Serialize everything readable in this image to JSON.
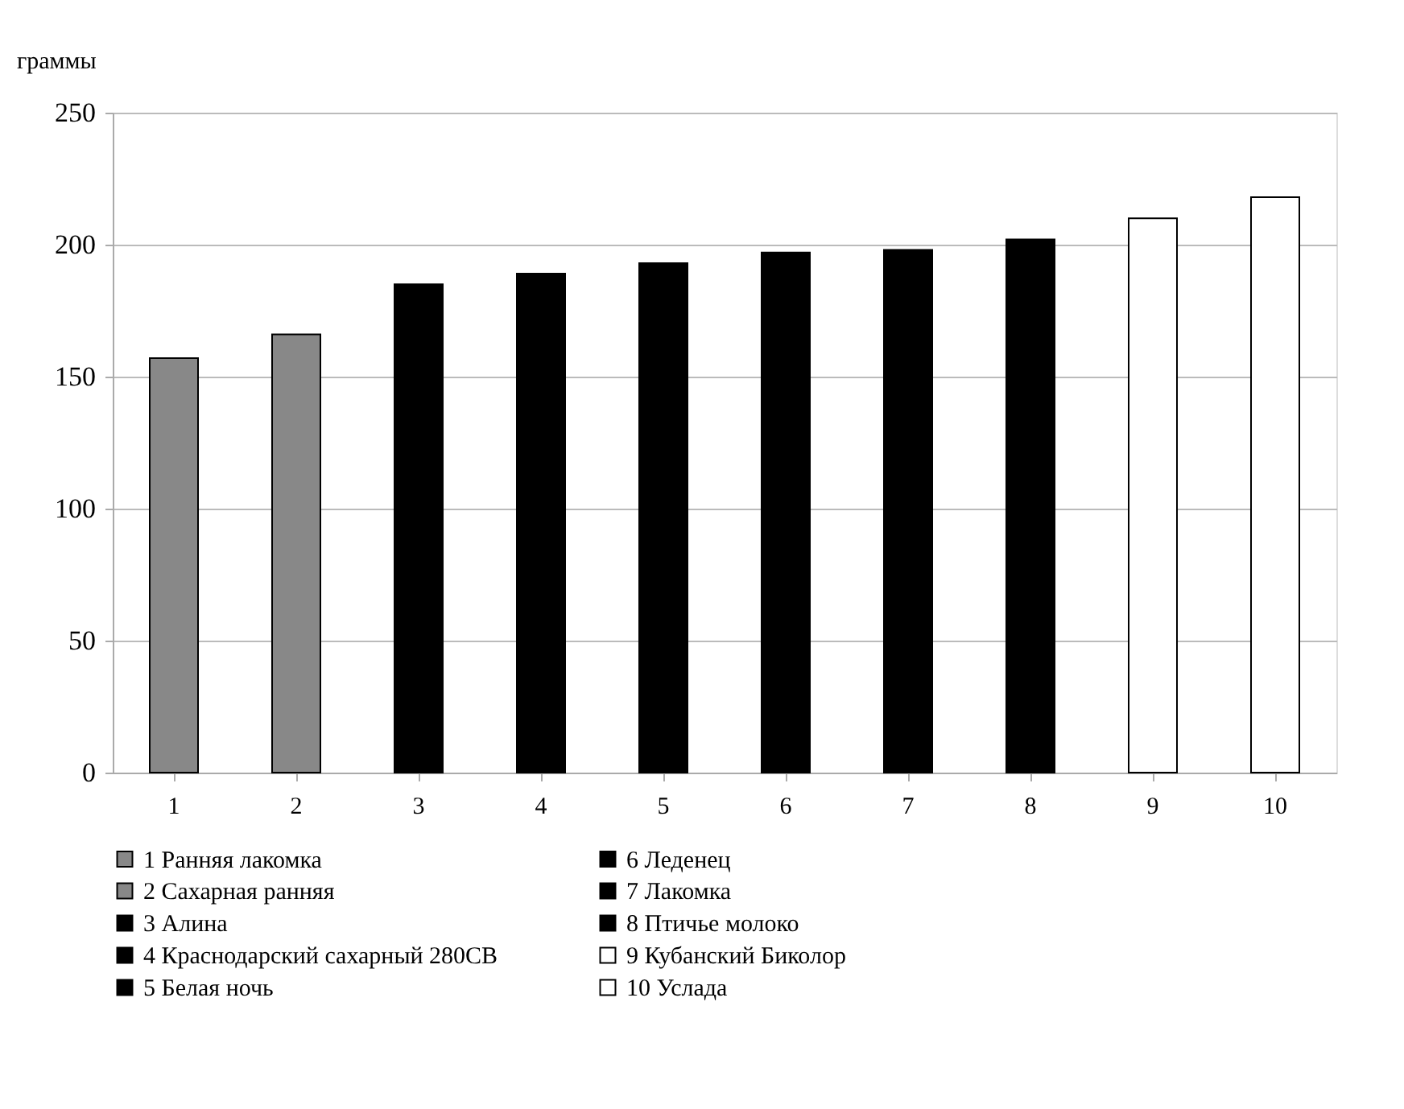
{
  "chart_data": {
    "type": "bar",
    "ylabel": "граммы",
    "categories": [
      "1",
      "2",
      "3",
      "4",
      "5",
      "6",
      "7",
      "8",
      "9",
      "10"
    ],
    "series": [
      {
        "name": "1  Ранняя лакомка",
        "color": "#888888",
        "values": [
          157,
          null,
          null,
          null,
          null,
          null,
          null,
          null,
          null,
          null
        ]
      },
      {
        "name": "2 Сахарная ранняя",
        "color": "#888888",
        "values": [
          null,
          166,
          null,
          null,
          null,
          null,
          null,
          null,
          null,
          null
        ]
      },
      {
        "name": "3  Алина",
        "color": "#000000",
        "values": [
          null,
          null,
          185,
          null,
          null,
          null,
          null,
          null,
          null,
          null
        ]
      },
      {
        "name": "4 Краснодарский сахарный 280СВ",
        "color": "#000000",
        "values": [
          null,
          null,
          null,
          189,
          null,
          null,
          null,
          null,
          null,
          null
        ]
      },
      {
        "name": "5 Белая ночь",
        "color": "#000000",
        "values": [
          null,
          null,
          null,
          null,
          193,
          null,
          null,
          null,
          null,
          null
        ]
      },
      {
        "name": "6  Леденец",
        "color": "#000000",
        "values": [
          null,
          null,
          null,
          null,
          null,
          197,
          null,
          null,
          null,
          null
        ]
      },
      {
        "name": "7  Лакомка",
        "color": "#000000",
        "values": [
          null,
          null,
          null,
          null,
          null,
          null,
          198,
          null,
          null,
          null
        ]
      },
      {
        "name": "8  Птичье молоко",
        "color": "#000000",
        "values": [
          null,
          null,
          null,
          null,
          null,
          null,
          null,
          202,
          null,
          null
        ]
      },
      {
        "name": "9  Кубанский Биколор",
        "color": "#ffffff",
        "values": [
          null,
          null,
          null,
          null,
          null,
          null,
          null,
          null,
          210,
          null
        ]
      },
      {
        "name": "10 Услада",
        "color": "#ffffff",
        "values": [
          null,
          null,
          null,
          null,
          null,
          null,
          null,
          null,
          null,
          218
        ]
      }
    ],
    "ylim": [
      0,
      250
    ],
    "yticks": [
      0,
      50,
      100,
      150,
      200,
      250
    ],
    "grid": "y",
    "legend": "bottom"
  }
}
